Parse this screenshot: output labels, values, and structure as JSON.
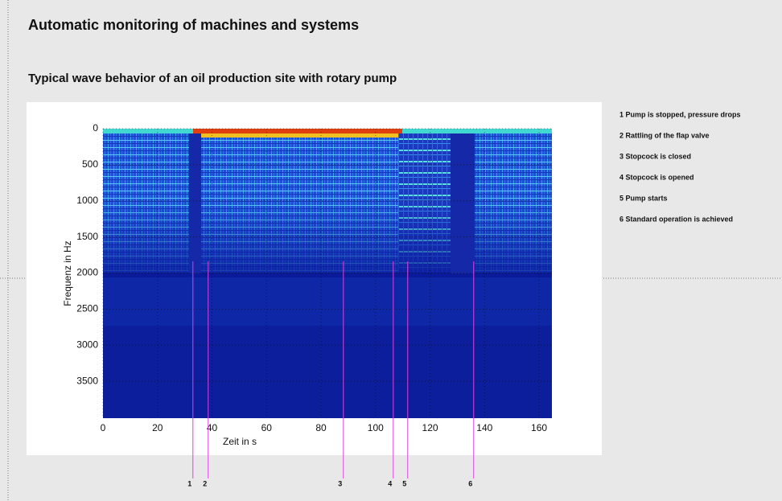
{
  "title": "Automatic monitoring of machines and systems",
  "subtitle": "Typical wave behavior of an oil production site with rotary pump",
  "chart_data": {
    "type": "spectrogram",
    "xlabel": "Zeit in s",
    "ylabel": "Frequenz in Hz",
    "xlim": [
      0,
      165
    ],
    "ylim": [
      0,
      4000
    ],
    "xticks": [
      0,
      20,
      40,
      60,
      80,
      100,
      120,
      140,
      160
    ],
    "yticks": [
      0,
      500,
      1000,
      1500,
      2000,
      2500,
      3000,
      3500
    ],
    "grid": true,
    "events": [
      {
        "label": "1",
        "x": 33
      },
      {
        "label": "2",
        "x": 38.6
      },
      {
        "label": "3",
        "x": 88.2
      },
      {
        "label": "4",
        "x": 106.5
      },
      {
        "label": "5",
        "x": 111.8
      },
      {
        "label": "6",
        "x": 136
      }
    ],
    "event_color": "#e040e0"
  },
  "notes": [
    "1 Pump is stopped, pressure drops",
    "2 Rattling of the flap valve",
    "3 Stopcock is closed",
    "4 Stopcock is opened",
    "5 Pump starts",
    "6 Standard operation is achieved"
  ]
}
